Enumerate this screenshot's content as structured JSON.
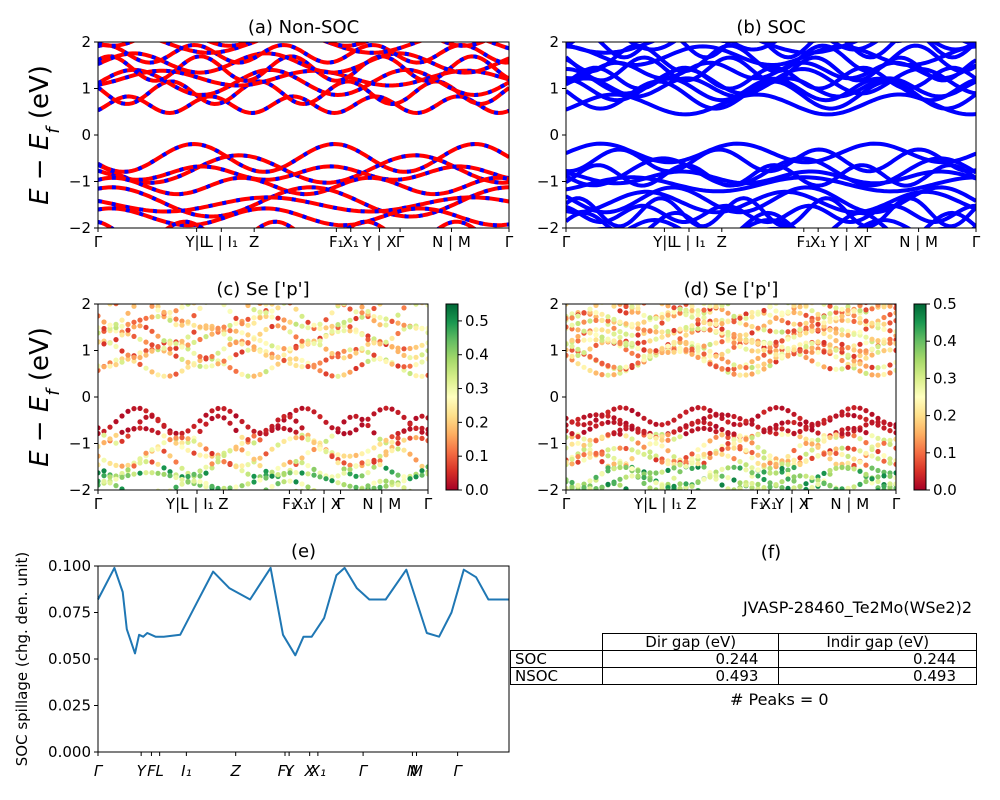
{
  "titles": {
    "a": "(a) Non-SOC",
    "b": "(b) SOC",
    "c": "(c)  Se ['p']",
    "d": "(d) Se ['p']",
    "e": "(e)",
    "f": "(f)"
  },
  "ylabel_main": "E − E",
  "ylabel_sub": "f",
  "ylabel_unit": " (eV)",
  "ylabel_spill": "SOC spillage (chg. den. unit)",
  "band_kpath_labels": [
    "Γ",
    "Y|L",
    "L | I",
    "Z",
    "F",
    "X",
    "Y | X",
    "Γ",
    "N | M",
    "Γ"
  ],
  "spill_kpath_labels": [
    "Γ",
    "Y",
    "F",
    "L",
    "I",
    "Z",
    "F",
    "Y",
    "X",
    "X",
    "Γ",
    "N",
    "M",
    "Γ"
  ],
  "colors": {
    "nonsoc_up": "#ff0000",
    "nonsoc_dn": "#0000ff",
    "soc": "#0000ff",
    "spill": "#1f77b4"
  },
  "chart_data": [
    {
      "type": "line",
      "panel": "a",
      "title": "(a) Non-SOC",
      "ylabel": "E − E_f (eV)",
      "ylim": [
        -2,
        2
      ],
      "yticks": [
        -2,
        -1,
        0,
        1,
        2
      ],
      "xticks": [
        "Γ",
        "Y|L",
        "L | I1",
        "Z",
        "F1",
        "X1",
        "Y | X",
        "Γ",
        "N | M",
        "Γ"
      ]
    },
    {
      "type": "line",
      "panel": "b",
      "title": "(b) SOC",
      "ylim": [
        -2,
        2
      ],
      "yticks": [
        -2,
        -1,
        0,
        1,
        2
      ],
      "xticks": [
        "Γ",
        "Y|L",
        "L | I1",
        "Z",
        "F1",
        "X1",
        "Y | X",
        "Γ",
        "N | M",
        "Γ"
      ]
    },
    {
      "type": "scatter",
      "panel": "c",
      "title": "(c)  Se ['p']",
      "ylabel": "E − E_f (eV)",
      "ylim": [
        -2,
        2
      ],
      "colorbar": {
        "min": 0.0,
        "max": 0.55,
        "ticks": [
          "0.0",
          "0.1",
          "0.2",
          "0.3",
          "0.4",
          "0.5"
        ]
      }
    },
    {
      "type": "scatter",
      "panel": "d",
      "title": "(d) Se ['p']",
      "ylim": [
        -2,
        2
      ],
      "colorbar": {
        "min": 0.0,
        "max": 0.5,
        "ticks": [
          "0.0",
          "0.1",
          "0.2",
          "0.3",
          "0.4",
          "0.5"
        ]
      }
    },
    {
      "type": "line",
      "panel": "e",
      "title": "(e)",
      "ylabel": "SOC spillage (chg. den. unit)",
      "ylim": [
        0,
        0.1
      ],
      "yticks": [
        "0.000",
        "0.025",
        "0.050",
        "0.075",
        "0.100"
      ],
      "x": [
        0,
        0.04,
        0.06,
        0.07,
        0.09,
        0.1,
        0.11,
        0.12,
        0.14,
        0.16,
        0.2,
        0.24,
        0.28,
        0.32,
        0.37,
        0.42,
        0.45,
        0.48,
        0.5,
        0.52,
        0.55,
        0.58,
        0.6,
        0.63,
        0.66,
        0.7,
        0.75,
        0.8,
        0.83,
        0.86,
        0.89,
        0.92,
        0.95,
        0.98,
        1.0
      ],
      "values": [
        0.082,
        0.099,
        0.086,
        0.066,
        0.053,
        0.063,
        0.062,
        0.064,
        0.062,
        0.062,
        0.063,
        0.08,
        0.097,
        0.088,
        0.082,
        0.099,
        0.063,
        0.052,
        0.062,
        0.062,
        0.072,
        0.095,
        0.099,
        0.088,
        0.082,
        0.082,
        0.098,
        0.064,
        0.062,
        0.075,
        0.098,
        0.094,
        0.082,
        0.082,
        0.082
      ]
    }
  ],
  "table": {
    "material": "JVASP-28460_Te2Mo(WSe2)2",
    "headers": [
      "",
      "Dir gap (eV)",
      "Indir gap (eV)"
    ],
    "rows": [
      {
        "label": "SOC",
        "dir": "0.244",
        "indir": "0.244"
      },
      {
        "label": "NSOC",
        "dir": "0.493",
        "indir": "0.493"
      }
    ],
    "peaks": "# Peaks = 0"
  }
}
